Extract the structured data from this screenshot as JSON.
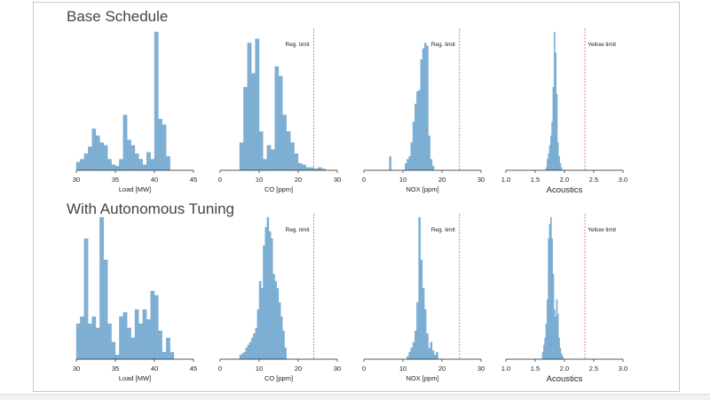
{
  "sections": [
    {
      "title": "Base Schedule"
    },
    {
      "title": "With Autonomous Tuning"
    }
  ],
  "colors": {
    "bar": "#7fb0d4",
    "bar_edge": "#6fa3ca",
    "limit_line": "#d9736e",
    "axis": "#222222",
    "text": "#222222"
  },
  "chart_data": [
    {
      "type": "bar",
      "section": "Base Schedule",
      "xlabel": "Load [MW]",
      "xlim": [
        30,
        45
      ],
      "xticks": [
        30,
        35,
        40,
        45
      ],
      "bin_start": 30,
      "bin_width": 0.5,
      "values": [
        0.06,
        0.08,
        0.12,
        0.17,
        0.3,
        0.25,
        0.2,
        0.18,
        0.08,
        0.04,
        0.03,
        0.08,
        0.4,
        0.22,
        0.18,
        0.12,
        0.08,
        0.04,
        0.13,
        0.08,
        1.0,
        0.37,
        0.33,
        0.1
      ],
      "limit": null,
      "limit_label": "",
      "xlabel_size": "small"
    },
    {
      "type": "bar",
      "section": "Base Schedule",
      "xlabel": "CO [ppm]",
      "xlim": [
        0,
        30
      ],
      "xticks": [
        0,
        10,
        20,
        30
      ],
      "bin_start": 5,
      "bin_width": 1,
      "values": [
        0.2,
        0.6,
        0.92,
        0.7,
        0.95,
        0.28,
        0.08,
        0.18,
        0.15,
        0.75,
        0.68,
        0.4,
        0.28,
        0.2,
        0.12,
        0.05,
        0.04,
        0.02,
        0.02,
        0.01,
        0.02,
        0.01
      ],
      "limit": 24,
      "limit_label": "Reg. limit",
      "xlabel_size": "small"
    },
    {
      "type": "bar",
      "section": "Base Schedule",
      "xlabel": "NOX [ppm]",
      "xlim": [
        0,
        30
      ],
      "xticks": [
        0,
        10,
        20,
        30
      ],
      "bin_start": 6.5,
      "bin_width": 0.5,
      "values": [
        0.1,
        0,
        0,
        0,
        0,
        0,
        0,
        0,
        0.05,
        0.08,
        0.1,
        0.2,
        0.35,
        0.48,
        0.57,
        0.58,
        0.8,
        0.88,
        0.92,
        0.9,
        0.25,
        0.08,
        0.03
      ],
      "limit": 24.5,
      "limit_label": "Reg. limit",
      "xlabel_size": "small"
    },
    {
      "type": "bar",
      "section": "Base Schedule",
      "xlabel": "Acoustics",
      "xlim": [
        1.0,
        3.0
      ],
      "xticks": [
        "1.0",
        "1.5",
        "2.0",
        "2.5",
        "3.0"
      ],
      "bin_start": 1.68,
      "bin_width": 0.02,
      "values": [
        0.02,
        0.08,
        0.12,
        0.18,
        0.25,
        0.35,
        0.6,
        1.0,
        0.85,
        0.55,
        0.2,
        0.1,
        0.05,
        0.02
      ],
      "limit": 2.35,
      "limit_label": "Yellow limit",
      "xlabel_size": "large"
    },
    {
      "type": "bar",
      "section": "With Autonomous Tuning",
      "xlabel": "Load [MW]",
      "xlim": [
        30,
        45
      ],
      "xticks": [
        30,
        35,
        40,
        45
      ],
      "bin_start": 30,
      "bin_width": 0.5,
      "values": [
        0.25,
        0.3,
        0.85,
        0.25,
        0.3,
        0.22,
        1.0,
        0.7,
        0.25,
        0.12,
        0.03,
        0.3,
        0.33,
        0.22,
        0.15,
        0.35,
        0.25,
        0.35,
        0.28,
        0.48,
        0.45,
        0.2,
        0.05,
        0.15,
        0.05
      ],
      "limit": null,
      "limit_label": "",
      "xlabel_size": "small"
    },
    {
      "type": "bar",
      "section": "With Autonomous Tuning",
      "xlabel": "CO [ppm]",
      "xlim": [
        0,
        30
      ],
      "xticks": [
        0,
        10,
        20,
        30
      ],
      "bin_start": 5,
      "bin_width": 0.5,
      "values": [
        0.03,
        0.04,
        0.05,
        0.08,
        0.1,
        0.12,
        0.15,
        0.18,
        0.22,
        0.35,
        0.55,
        0.5,
        0.8,
        0.93,
        1.0,
        0.9,
        0.85,
        0.6,
        0.55,
        0.5,
        0.4,
        0.3,
        0.2,
        0.08
      ],
      "limit": 24,
      "limit_label": "Reg. limit",
      "xlabel_size": "small"
    },
    {
      "type": "bar",
      "section": "With Autonomous Tuning",
      "xlabel": "NOX [ppm]",
      "xlim": [
        0,
        30
      ],
      "xticks": [
        0,
        10,
        20,
        30
      ],
      "bin_start": 11,
      "bin_width": 0.5,
      "values": [
        0.02,
        0.05,
        0.08,
        0.12,
        0.2,
        0.4,
        1.0,
        0.7,
        0.5,
        0.35,
        0.18,
        0.08,
        0.12,
        0.06,
        0.03,
        0.05
      ],
      "limit": 24.5,
      "limit_label": "Reg. limit",
      "xlabel_size": "small"
    },
    {
      "type": "bar",
      "section": "With Autonomous Tuning",
      "xlabel": "Acoustics",
      "xlim": [
        1.0,
        3.0
      ],
      "xticks": [
        "1.0",
        "1.5",
        "2.0",
        "2.5",
        "3.0"
      ],
      "bin_start": 1.62,
      "bin_width": 0.02,
      "values": [
        0.05,
        0.1,
        0.15,
        0.25,
        0.42,
        0.85,
        0.95,
        1.0,
        0.85,
        0.6,
        0.35,
        0.3,
        0.42,
        0.32,
        0.15,
        0.08,
        0.04,
        0.02
      ],
      "limit": 2.35,
      "limit_label": "Yellow limit",
      "xlabel_size": "large"
    }
  ]
}
